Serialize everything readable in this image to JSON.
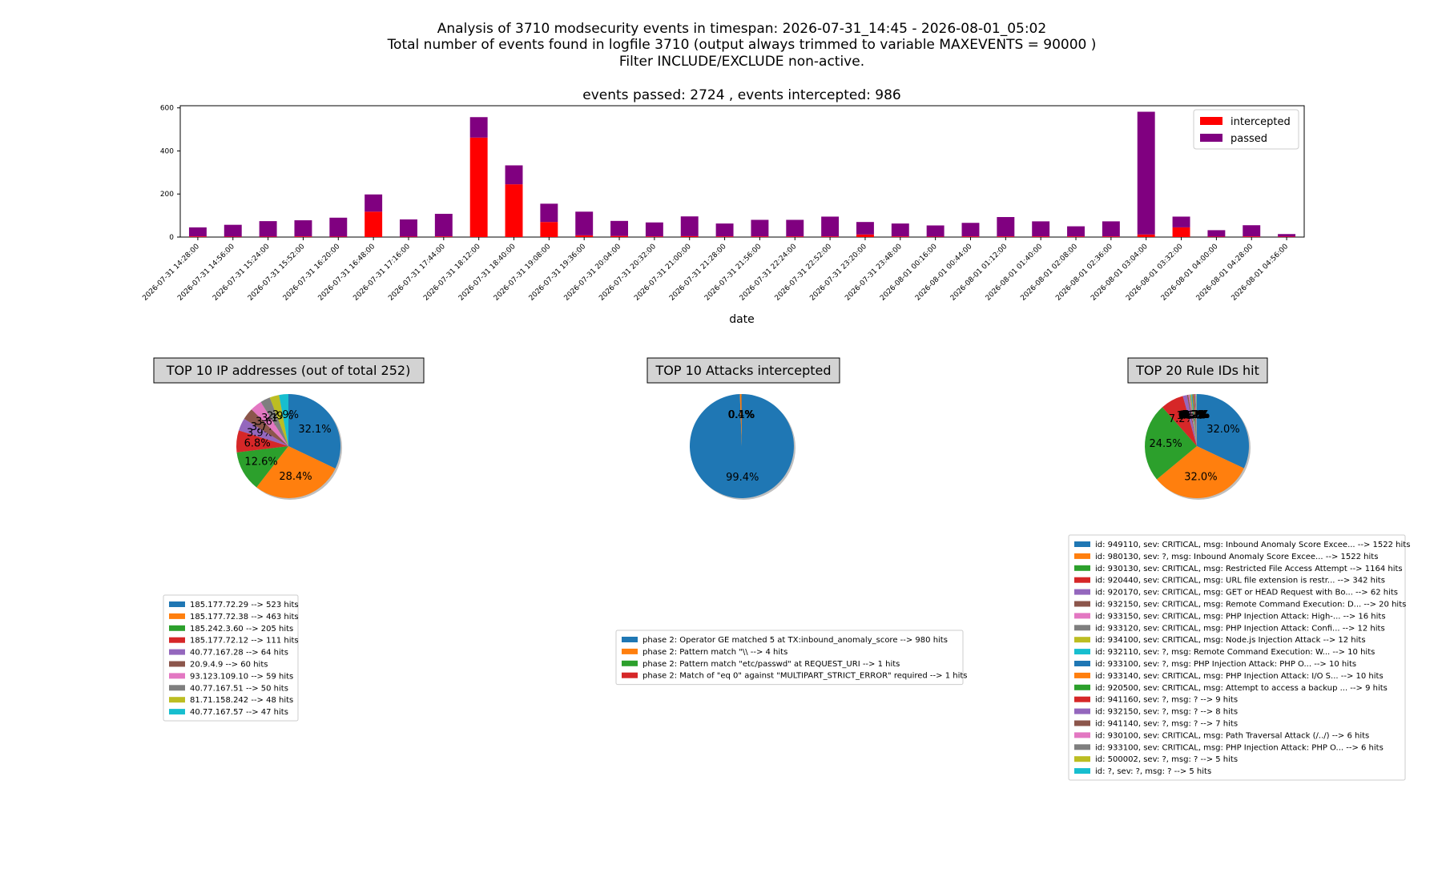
{
  "header": {
    "line1": "Analysis of 3710 modsecurity events in timespan: 2026-07-31_14:45 - 2026-08-01_05:02",
    "line2": "Total number of events found in logfile 3710 (output always trimmed to variable MAXEVENTS = 90000 )",
    "line3": "Filter INCLUDE/EXCLUDE non-active."
  },
  "colors": {
    "intercepted": "#ff0000",
    "passed": "#800080",
    "palette": [
      "#1f77b4",
      "#ff7f0e",
      "#2ca02c",
      "#d62728",
      "#9467bd",
      "#8c564b",
      "#e377c2",
      "#7f7f7f",
      "#bcbd22",
      "#17becf"
    ]
  },
  "chart_data": [
    {
      "type": "bar",
      "stacked": true,
      "title": "events passed: 2724 , events intercepted: 986",
      "xlabel": "date",
      "ylabel": "",
      "ylim": [
        0,
        610
      ],
      "yticks": [
        0,
        200,
        400,
        600
      ],
      "legend_position": "top-right",
      "categories": [
        "2026-07-31 14:28:00",
        "2026-07-31 14:56:00",
        "2026-07-31 15:24:00",
        "2026-07-31 15:52:00",
        "2026-07-31 16:20:00",
        "2026-07-31 16:48:00",
        "2026-07-31 17:16:00",
        "2026-07-31 17:44:00",
        "2026-07-31 18:12:00",
        "2026-07-31 18:40:00",
        "2026-07-31 19:08:00",
        "2026-07-31 19:36:00",
        "2026-07-31 20:04:00",
        "2026-07-31 20:32:00",
        "2026-07-31 21:00:00",
        "2026-07-31 21:28:00",
        "2026-07-31 21:56:00",
        "2026-07-31 22:24:00",
        "2026-07-31 22:52:00",
        "2026-07-31 23:20:00",
        "2026-07-31 23:48:00",
        "2026-08-01 00:16:00",
        "2026-08-01 00:44:00",
        "2026-08-01 01:12:00",
        "2026-08-01 01:40:00",
        "2026-08-01 02:08:00",
        "2026-08-01 02:36:00",
        "2026-08-01 03:04:00",
        "2026-08-01 03:32:00",
        "2026-08-01 04:00:00",
        "2026-08-01 04:28:00",
        "2026-08-01 04:56:00"
      ],
      "series": [
        {
          "name": "intercepted",
          "values": [
            3,
            2,
            2,
            3,
            2,
            118,
            2,
            3,
            462,
            245,
            70,
            8,
            5,
            3,
            4,
            3,
            3,
            3,
            3,
            12,
            3,
            2,
            3,
            3,
            3,
            3,
            3,
            12,
            45,
            2,
            3,
            2
          ]
        },
        {
          "name": "passed",
          "values": [
            42,
            55,
            72,
            75,
            88,
            80,
            80,
            105,
            95,
            88,
            85,
            110,
            70,
            65,
            92,
            60,
            77,
            77,
            92,
            58,
            60,
            52,
            63,
            90,
            70,
            47,
            70,
            570,
            50,
            30,
            52,
            12
          ]
        }
      ]
    },
    {
      "type": "pie",
      "title": "TOP 10 IP addresses (out of total 252)",
      "slice_labels": [
        "32.1%",
        "28.4%",
        "12.6%",
        "6.8%",
        "3.9%",
        "3.7%",
        "3.6%",
        "3.1%",
        "2.9%",
        "2.9%"
      ],
      "legend": [
        "185.177.72.29 --> 523 hits",
        "185.177.72.38 --> 463 hits",
        "185.242.3.60 --> 205 hits",
        "185.177.72.12 --> 111 hits",
        "40.77.167.28 --> 64 hits",
        "20.9.4.9 --> 60 hits",
        "93.123.109.10 --> 59 hits",
        "40.77.167.51 --> 50 hits",
        "81.71.158.242 --> 48 hits",
        "40.77.167.57 --> 47 hits"
      ],
      "values": [
        523,
        463,
        205,
        111,
        64,
        60,
        59,
        50,
        48,
        47
      ]
    },
    {
      "type": "pie",
      "title": "TOP 10 Attacks intercepted",
      "slice_labels": [
        "99.4%",
        "0.4%",
        "0.1%",
        "0.1%"
      ],
      "legend": [
        "phase 2: Operator GE matched 5 at TX:inbound_anomaly_score --> 980 hits",
        "phase 2: Pattern match \"\\\\ --> 4 hits",
        "phase 2: Pattern match \"etc/passwd\" at REQUEST_URI --> 1 hits",
        "phase 2: Match of \"eq 0\" against \"MULTIPART_STRICT_ERROR\" required --> 1 hits"
      ],
      "values": [
        980,
        4,
        1,
        1
      ]
    },
    {
      "type": "pie",
      "title": "TOP 20 Rule IDs hit",
      "slice_labels": [
        "32.0%",
        "32.0%",
        "24.5%",
        "7.2%",
        "1.3%",
        "0.4%",
        "0.3%",
        "0.3%",
        "0.3%",
        "0.2%",
        "0.2%",
        "0.2%",
        "0.2%",
        "0.2%",
        "0.2%",
        "0.1%",
        "0.1%",
        "0.1%",
        "0.1%",
        "0.1%"
      ],
      "legend": [
        "id: 949110, sev: CRITICAL, msg: Inbound Anomaly Score Excee... --> 1522 hits",
        "id: 980130, sev: ?, msg: Inbound Anomaly Score Excee... --> 1522 hits",
        "id: 930130, sev: CRITICAL, msg: Restricted File Access Attempt --> 1164 hits",
        "id: 920440, sev: CRITICAL, msg: URL file extension is restr... --> 342 hits",
        "id: 920170, sev: CRITICAL, msg: GET or HEAD Request with Bo... --> 62 hits",
        "id: 932150, sev: CRITICAL, msg: Remote Command Execution: D... --> 20 hits",
        "id: 933150, sev: CRITICAL, msg: PHP Injection Attack: High-... --> 16 hits",
        "id: 933120, sev: CRITICAL, msg: PHP Injection Attack: Confi... --> 12 hits",
        "id: 934100, sev: CRITICAL, msg: Node.js Injection Attack --> 12 hits",
        "id: 932110, sev: ?, msg: Remote Command Execution: W... --> 10 hits",
        "id: 933100, sev: ?, msg: PHP Injection Attack: PHP O... --> 10 hits",
        "id: 933140, sev: CRITICAL, msg: PHP Injection Attack: I/O S... --> 10 hits",
        "id: 920500, sev: CRITICAL, msg: Attempt to access a backup ... --> 9 hits",
        "id: 941160, sev: ?, msg: ? --> 9 hits",
        "id: 932150, sev: ?, msg: ? --> 8 hits",
        "id: 941140, sev: ?, msg: ? --> 7 hits",
        "id: 930100, sev: CRITICAL, msg: Path Traversal Attack (/../) --> 6 hits",
        "id: 933100, sev: CRITICAL, msg: PHP Injection Attack: PHP O... --> 6 hits",
        "id: 500002, sev: ?, msg: ? --> 5 hits",
        "id: ?, sev: ?, msg: ? --> 5 hits"
      ],
      "values": [
        1522,
        1522,
        1164,
        342,
        62,
        20,
        16,
        12,
        12,
        10,
        10,
        10,
        9,
        9,
        8,
        7,
        6,
        6,
        5,
        5
      ]
    }
  ]
}
